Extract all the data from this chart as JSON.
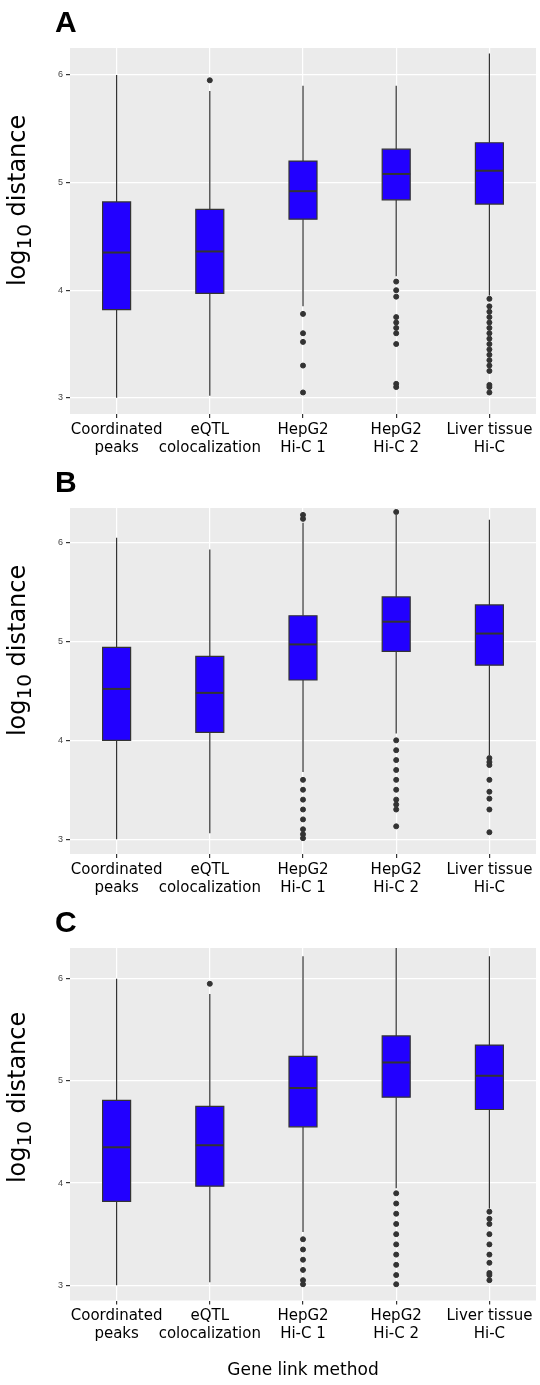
{
  "chart_data": [
    {
      "type": "box",
      "title": "A",
      "ylabel": "log$_{10}$ distance",
      "categories": [
        "Coordinated\npeaks",
        "eQTL\ncolocalization",
        "HepG2\nHi-C 1",
        "HepG2\nHi-C 2",
        "Liver tissue\nHi-C"
      ],
      "ylim": [
        2.85,
        6.25
      ],
      "yticks": [
        3,
        4,
        5,
        6
      ],
      "grid": true,
      "legend": false,
      "series": [
        {
          "color": "#2200ff",
          "boxes": [
            {
              "low": 3.0,
              "q1": 3.82,
              "median": 4.35,
              "q3": 4.82,
              "high": 6.0
            },
            {
              "low": 3.02,
              "q1": 3.97,
              "median": 4.36,
              "q3": 4.75,
              "high": 5.85,
              "outliers": [
                5.95
              ]
            },
            {
              "low": 3.85,
              "q1": 4.66,
              "median": 4.92,
              "q3": 5.2,
              "high": 5.9,
              "outliers": [
                3.78,
                3.6,
                3.52,
                3.3,
                3.05
              ]
            },
            {
              "low": 4.13,
              "q1": 4.84,
              "median": 5.08,
              "q3": 5.31,
              "high": 5.9,
              "outliers": [
                4.08,
                4.0,
                3.94,
                3.75,
                3.7,
                3.65,
                3.6,
                3.5,
                3.13,
                3.1
              ]
            },
            {
              "low": 3.95,
              "q1": 4.8,
              "median": 5.11,
              "q3": 5.37,
              "high": 6.2,
              "outliers": [
                3.92,
                3.85,
                3.8,
                3.75,
                3.7,
                3.65,
                3.6,
                3.55,
                3.5,
                3.45,
                3.4,
                3.35,
                3.3,
                3.25,
                3.12,
                3.1,
                3.05
              ]
            }
          ]
        }
      ]
    },
    {
      "type": "box",
      "title": "B",
      "ylabel": "log$_{10}$ distance",
      "categories": [
        "Coordinated\npeaks",
        "eQTL\ncolocalization",
        "HepG2\nHi-C 1",
        "HepG2\nHi-C 2",
        "Liver tissue\nHi-C"
      ],
      "ylim": [
        2.85,
        6.35
      ],
      "yticks": [
        3,
        4,
        5,
        6
      ],
      "grid": true,
      "legend": false,
      "series": [
        {
          "color": "#2200ff",
          "boxes": [
            {
              "low": 3.0,
              "q1": 4.0,
              "median": 4.52,
              "q3": 4.94,
              "high": 6.05
            },
            {
              "low": 3.06,
              "q1": 4.08,
              "median": 4.48,
              "q3": 4.85,
              "high": 5.93
            },
            {
              "low": 3.68,
              "q1": 4.61,
              "median": 4.97,
              "q3": 5.26,
              "high": 6.2,
              "outliers": [
                6.24,
                6.28,
                3.6,
                3.5,
                3.4,
                3.3,
                3.2,
                3.1,
                3.05,
                3.01
              ]
            },
            {
              "low": 4.07,
              "q1": 4.9,
              "median": 5.2,
              "q3": 5.45,
              "high": 6.28,
              "outliers": [
                6.31,
                4.0,
                3.9,
                3.8,
                3.7,
                3.6,
                3.5,
                3.4,
                3.35,
                3.3,
                3.13
              ]
            },
            {
              "low": 3.85,
              "q1": 4.76,
              "median": 5.08,
              "q3": 5.37,
              "high": 6.23,
              "outliers": [
                3.82,
                3.78,
                3.75,
                3.6,
                3.48,
                3.41,
                3.3,
                3.07
              ]
            }
          ]
        }
      ]
    },
    {
      "type": "box",
      "title": "C",
      "ylabel": "log$_{10}$ distance",
      "xlabel": "Gene link method",
      "categories": [
        "Coordinated\npeaks",
        "eQTL\ncolocalization",
        "HepG2\nHi-C 1",
        "HepG2\nHi-C 2",
        "Liver tissue\nHi-C"
      ],
      "ylim": [
        2.85,
        6.3
      ],
      "yticks": [
        3,
        4,
        5,
        6
      ],
      "grid": true,
      "legend": false,
      "series": [
        {
          "color": "#2200ff",
          "boxes": [
            {
              "low": 3.0,
              "q1": 3.82,
              "median": 4.35,
              "q3": 4.81,
              "high": 6.0
            },
            {
              "low": 3.03,
              "q1": 3.97,
              "median": 4.37,
              "q3": 4.75,
              "high": 5.85,
              "outliers": [
                5.95
              ]
            },
            {
              "low": 3.52,
              "q1": 4.55,
              "median": 4.93,
              "q3": 5.24,
              "high": 6.22,
              "outliers": [
                3.45,
                3.35,
                3.25,
                3.15,
                3.05,
                3.01
              ]
            },
            {
              "low": 3.95,
              "q1": 4.84,
              "median": 5.18,
              "q3": 5.44,
              "high": 6.3,
              "outliers": [
                3.9,
                3.8,
                3.7,
                3.6,
                3.5,
                3.4,
                3.3,
                3.2,
                3.1,
                3.01
              ]
            },
            {
              "low": 3.75,
              "q1": 4.72,
              "median": 5.05,
              "q3": 5.35,
              "high": 6.22,
              "outliers": [
                3.72,
                3.65,
                3.6,
                3.5,
                3.4,
                3.3,
                3.22,
                3.12,
                3.1,
                3.05
              ]
            }
          ]
        }
      ]
    }
  ]
}
